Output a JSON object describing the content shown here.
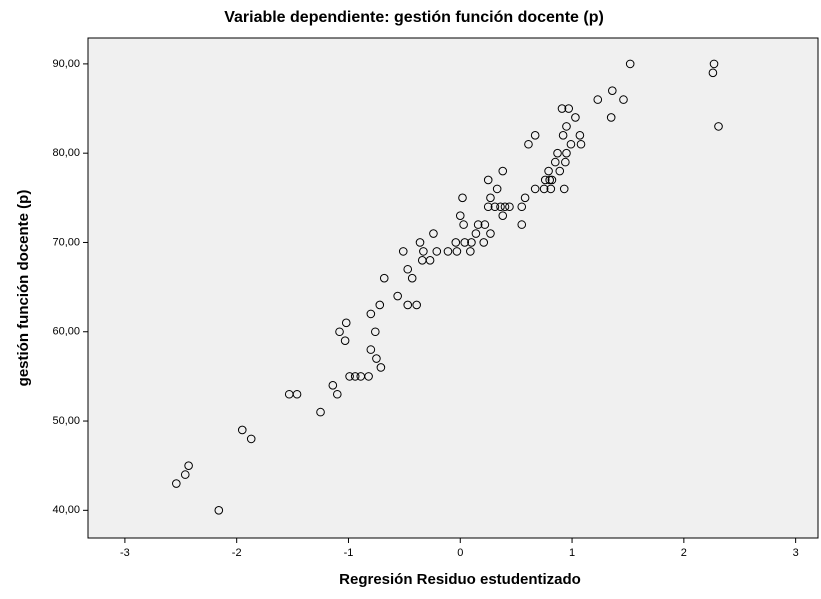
{
  "chart_data": {
    "type": "scatter",
    "title": "Variable dependiente: gestión función docente (p)",
    "x_label": "Regresión Residuo estudentizado",
    "y_label": "gestión función docente (p)",
    "xlim": [
      -3.33,
      3.2
    ],
    "ylim": [
      36.9,
      92.9
    ],
    "xticks": [
      -3,
      -2,
      -1,
      0,
      1,
      2,
      3
    ],
    "yticks": [
      {
        "value": 40,
        "label": "40,00"
      },
      {
        "value": 50,
        "label": "50,00"
      },
      {
        "value": 60,
        "label": "60,00"
      },
      {
        "value": 70,
        "label": "70,00"
      },
      {
        "value": 80,
        "label": "80,00"
      },
      {
        "value": 90,
        "label": "90,00"
      }
    ],
    "color": "#000000",
    "background": "#f0f0f0",
    "x": [
      1.52,
      2.27,
      2.26,
      2.31,
      1.36,
      1.23,
      1.46,
      1.35,
      0.91,
      0.97,
      1.03,
      0.95,
      0.92,
      1.07,
      0.67,
      0.61,
      0.99,
      1.08,
      0.87,
      0.95,
      0.85,
      0.94,
      0.79,
      0.89,
      0.38,
      0.76,
      0.8,
      0.82,
      0.25,
      0.75,
      0.81,
      0.67,
      0.33,
      0.93,
      0.02,
      0.27,
      0.58,
      0.25,
      0.31,
      0.36,
      0.44,
      0.4,
      0.55,
      0.38,
      0.0,
      0.03,
      0.16,
      0.22,
      0.55,
      0.14,
      0.27,
      -0.24,
      -0.04,
      0.04,
      0.1,
      0.21,
      -0.36,
      -0.11,
      -0.03,
      0.09,
      -0.21,
      -0.33,
      -0.51,
      -0.34,
      -0.27,
      -0.47,
      -0.68,
      -0.43,
      -0.56,
      -0.72,
      -0.47,
      -0.39,
      -0.8,
      -1.02,
      -1.08,
      -0.76,
      -1.03,
      -0.8,
      -0.75,
      -0.71,
      -0.99,
      -0.94,
      -0.89,
      -0.82,
      -1.14,
      -1.1,
      -1.53,
      -1.46,
      -1.25,
      -1.95,
      -1.87,
      -2.43,
      -2.46,
      -2.54,
      -2.16
    ],
    "values": [
      90,
      90,
      89,
      83,
      87,
      86,
      86,
      84,
      85,
      85,
      84,
      83,
      82,
      82,
      82,
      81,
      81,
      81,
      80,
      80,
      79,
      79,
      78,
      78,
      78,
      77,
      77,
      77,
      77,
      76,
      76,
      76,
      76,
      76,
      75,
      75,
      75,
      74,
      74,
      74,
      74,
      74,
      74,
      73,
      73,
      72,
      72,
      72,
      72,
      71,
      71,
      71,
      70,
      70,
      70,
      70,
      70,
      69,
      69,
      69,
      69,
      69,
      69,
      68,
      68,
      67,
      66,
      66,
      64,
      63,
      63,
      63,
      62,
      61,
      60,
      60,
      59,
      58,
      57,
      56,
      55,
      55,
      55,
      55,
      54,
      53,
      53,
      53,
      51,
      49,
      48,
      45,
      44,
      43,
      40
    ]
  }
}
